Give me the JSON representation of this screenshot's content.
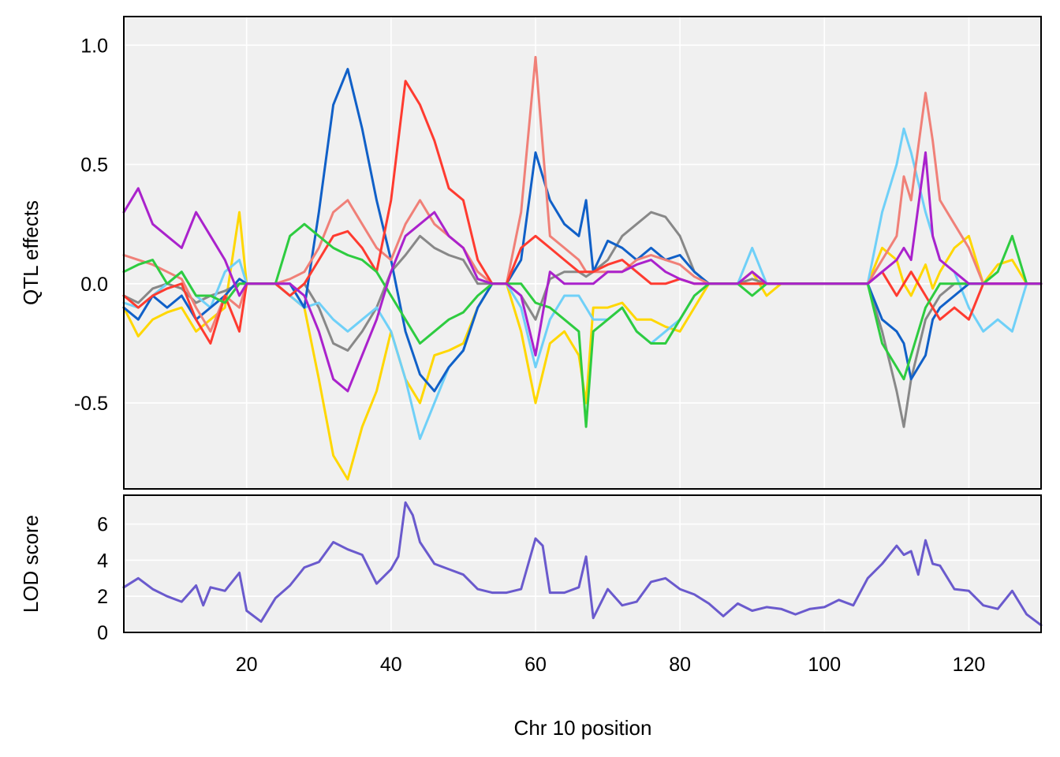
{
  "chart_data": [
    {
      "type": "line",
      "ylabel": "QTL effects",
      "xlim": [
        3,
        130
      ],
      "ylim": [
        -0.86,
        1.12
      ],
      "x_ticks": [
        20,
        40,
        60,
        80,
        100,
        120
      ],
      "y_ticks": [
        -0.5,
        0.0,
        0.5,
        1.0
      ],
      "y_tick_labels": [
        "-0.5",
        "0.0",
        "0.5",
        "1.0"
      ],
      "grid": true,
      "x": [
        3,
        5,
        7,
        9,
        11,
        13,
        15,
        17,
        19,
        20,
        22,
        24,
        26,
        28,
        30,
        32,
        34,
        36,
        38,
        40,
        42,
        44,
        46,
        48,
        50,
        52,
        54,
        56,
        58,
        60,
        62,
        64,
        66,
        67,
        68,
        70,
        72,
        74,
        76,
        78,
        80,
        82,
        84,
        86,
        88,
        90,
        92,
        94,
        96,
        98,
        100,
        102,
        104,
        106,
        108,
        110,
        111,
        112,
        114,
        115,
        116,
        118,
        120,
        122,
        124,
        126,
        128,
        130
      ],
      "series": [
        {
          "color": "#ffd700",
          "values": [
            -0.1,
            -0.22,
            -0.15,
            -0.12,
            -0.1,
            -0.2,
            -0.15,
            -0.1,
            0.3,
            0.0,
            0.0,
            0.0,
            -0.05,
            -0.1,
            -0.4,
            -0.72,
            -0.82,
            -0.6,
            -0.45,
            -0.2,
            -0.4,
            -0.5,
            -0.3,
            -0.28,
            -0.25,
            -0.1,
            0.0,
            0.0,
            -0.2,
            -0.5,
            -0.25,
            -0.2,
            -0.3,
            -0.5,
            -0.1,
            -0.1,
            -0.08,
            -0.15,
            -0.15,
            -0.18,
            -0.2,
            -0.1,
            0.0,
            0.0,
            0.0,
            0.05,
            -0.05,
            0.0,
            0.0,
            0.0,
            0.0,
            0.0,
            0.0,
            0.0,
            0.15,
            0.1,
            0.0,
            -0.05,
            0.08,
            -0.02,
            0.05,
            0.15,
            0.2,
            0.0,
            0.08,
            0.1,
            0.0,
            0.0
          ]
        },
        {
          "color": "#888888",
          "values": [
            -0.05,
            -0.08,
            -0.02,
            0.0,
            -0.02,
            -0.08,
            -0.05,
            -0.03,
            0.0,
            0.0,
            0.0,
            0.0,
            -0.05,
            0.0,
            -0.1,
            -0.25,
            -0.28,
            -0.2,
            -0.1,
            0.05,
            0.12,
            0.2,
            0.15,
            0.12,
            0.1,
            0.0,
            0.0,
            0.0,
            -0.05,
            -0.15,
            0.02,
            0.05,
            0.05,
            0.03,
            0.05,
            0.1,
            0.2,
            0.25,
            0.3,
            0.28,
            0.2,
            0.05,
            0.0,
            0.0,
            0.0,
            0.02,
            0.0,
            0.0,
            0.0,
            0.0,
            0.0,
            0.0,
            0.0,
            0.0,
            -0.2,
            -0.45,
            -0.6,
            -0.4,
            -0.15,
            -0.1,
            -0.05,
            0.0,
            0.0,
            0.0,
            0.0,
            0.0,
            0.0,
            0.0
          ]
        },
        {
          "color": "#6fd0f8",
          "values": [
            -0.08,
            -0.1,
            -0.05,
            0.0,
            0.05,
            -0.05,
            -0.1,
            0.05,
            0.1,
            0.0,
            0.0,
            0.0,
            -0.05,
            -0.1,
            -0.08,
            -0.15,
            -0.2,
            -0.15,
            -0.1,
            -0.2,
            -0.4,
            -0.65,
            -0.5,
            -0.35,
            -0.28,
            -0.1,
            0.0,
            0.0,
            -0.1,
            -0.35,
            -0.15,
            -0.05,
            -0.05,
            -0.1,
            -0.15,
            -0.15,
            -0.1,
            -0.2,
            -0.25,
            -0.2,
            -0.15,
            -0.05,
            0.0,
            0.0,
            0.0,
            0.15,
            0.0,
            0.0,
            0.0,
            0.0,
            0.0,
            0.0,
            0.0,
            0.0,
            0.3,
            0.5,
            0.65,
            0.55,
            0.3,
            0.2,
            0.1,
            0.05,
            -0.1,
            -0.2,
            -0.15,
            -0.2,
            0.0,
            0.0
          ]
        },
        {
          "color": "#1060c8",
          "values": [
            -0.1,
            -0.15,
            -0.05,
            -0.1,
            -0.05,
            -0.15,
            -0.1,
            -0.05,
            0.02,
            0.0,
            0.0,
            0.0,
            0.0,
            -0.1,
            0.3,
            0.75,
            0.9,
            0.65,
            0.35,
            0.1,
            -0.2,
            -0.38,
            -0.45,
            -0.35,
            -0.28,
            -0.1,
            0.0,
            0.0,
            0.1,
            0.55,
            0.35,
            0.25,
            0.2,
            0.35,
            0.05,
            0.18,
            0.15,
            0.1,
            0.15,
            0.1,
            0.12,
            0.05,
            0.0,
            0.0,
            0.0,
            0.0,
            0.0,
            0.0,
            0.0,
            0.0,
            0.0,
            0.0,
            0.0,
            0.0,
            -0.15,
            -0.2,
            -0.25,
            -0.4,
            -0.3,
            -0.15,
            -0.1,
            -0.05,
            0.0,
            0.0,
            0.0,
            0.0,
            0.0,
            0.0
          ]
        },
        {
          "color": "#f08078",
          "values": [
            0.12,
            0.1,
            0.08,
            0.05,
            0.02,
            -0.1,
            -0.2,
            -0.05,
            -0.1,
            0.0,
            0.0,
            0.0,
            0.02,
            0.05,
            0.15,
            0.3,
            0.35,
            0.25,
            0.15,
            0.1,
            0.25,
            0.35,
            0.25,
            0.2,
            0.15,
            0.05,
            0.0,
            0.0,
            0.3,
            0.95,
            0.2,
            0.15,
            0.1,
            0.05,
            0.05,
            0.05,
            0.05,
            0.1,
            0.12,
            0.1,
            0.08,
            0.03,
            0.0,
            0.0,
            0.0,
            0.0,
            0.0,
            0.0,
            0.0,
            0.0,
            0.0,
            0.0,
            0.0,
            0.0,
            0.1,
            0.2,
            0.45,
            0.35,
            0.8,
            0.6,
            0.35,
            0.25,
            0.15,
            0.0,
            0.0,
            0.0,
            0.0,
            0.0
          ]
        },
        {
          "color": "#ff3b30",
          "values": [
            -0.05,
            -0.1,
            -0.05,
            -0.02,
            0.0,
            -0.15,
            -0.25,
            -0.05,
            -0.2,
            0.0,
            0.0,
            0.0,
            -0.05,
            0.0,
            0.1,
            0.2,
            0.22,
            0.15,
            0.05,
            0.35,
            0.85,
            0.75,
            0.6,
            0.4,
            0.35,
            0.1,
            0.0,
            0.0,
            0.15,
            0.2,
            0.15,
            0.1,
            0.05,
            0.05,
            0.05,
            0.08,
            0.1,
            0.05,
            0.0,
            0.0,
            0.02,
            0.0,
            0.0,
            0.0,
            0.0,
            0.0,
            0.0,
            0.0,
            0.0,
            0.0,
            0.0,
            0.0,
            0.0,
            0.0,
            0.05,
            -0.05,
            0.0,
            0.05,
            -0.05,
            -0.1,
            -0.15,
            -0.1,
            -0.15,
            0.0,
            0.0,
            0.0,
            0.0,
            0.0
          ]
        },
        {
          "color": "#2ecc40",
          "values": [
            0.05,
            0.08,
            0.1,
            0.0,
            0.05,
            -0.05,
            -0.05,
            -0.08,
            0.0,
            0.0,
            0.0,
            0.0,
            0.2,
            0.25,
            0.2,
            0.15,
            0.12,
            0.1,
            0.05,
            -0.05,
            -0.15,
            -0.25,
            -0.2,
            -0.15,
            -0.12,
            -0.05,
            0.0,
            0.0,
            0.0,
            -0.08,
            -0.1,
            -0.15,
            -0.2,
            -0.6,
            -0.2,
            -0.15,
            -0.1,
            -0.2,
            -0.25,
            -0.25,
            -0.15,
            -0.05,
            0.0,
            0.0,
            0.0,
            -0.05,
            0.0,
            0.0,
            0.0,
            0.0,
            0.0,
            0.0,
            0.0,
            0.0,
            -0.25,
            -0.35,
            -0.4,
            -0.3,
            -0.1,
            -0.05,
            0.0,
            0.0,
            0.0,
            0.0,
            0.05,
            0.2,
            0.0,
            0.0
          ]
        },
        {
          "color": "#aa22cc",
          "values": [
            0.3,
            0.4,
            0.25,
            0.2,
            0.15,
            0.3,
            0.2,
            0.1,
            -0.05,
            0.0,
            0.0,
            0.0,
            0.0,
            -0.05,
            -0.2,
            -0.4,
            -0.45,
            -0.3,
            -0.15,
            0.05,
            0.2,
            0.25,
            0.3,
            0.2,
            0.15,
            0.02,
            0.0,
            0.0,
            -0.05,
            -0.3,
            0.05,
            0.0,
            0.0,
            0.0,
            0.0,
            0.05,
            0.05,
            0.08,
            0.1,
            0.05,
            0.02,
            0.0,
            0.0,
            0.0,
            0.0,
            0.05,
            0.0,
            0.0,
            0.0,
            0.0,
            0.0,
            0.0,
            0.0,
            0.0,
            0.05,
            0.1,
            0.15,
            0.1,
            0.55,
            0.2,
            0.1,
            0.05,
            0.0,
            0.0,
            0.0,
            0.0,
            0.0,
            0.0
          ]
        }
      ]
    },
    {
      "type": "line",
      "ylabel": "LOD score",
      "xlabel": "Chr 10 position",
      "xlim": [
        3,
        130
      ],
      "ylim": [
        0,
        7.6
      ],
      "x_ticks": [
        20,
        40,
        60,
        80,
        100,
        120
      ],
      "x_tick_labels": [
        "20",
        "40",
        "60",
        "80",
        "100",
        "120"
      ],
      "y_ticks": [
        0,
        2,
        4,
        6
      ],
      "y_tick_labels": [
        "0",
        "2",
        "4",
        "6"
      ],
      "grid": true,
      "series": [
        {
          "color": "#6a5acd",
          "x": [
            3,
            5,
            7,
            9,
            11,
            13,
            14,
            15,
            17,
            19,
            20,
            22,
            24,
            26,
            28,
            30,
            32,
            34,
            36,
            38,
            40,
            41,
            42,
            43,
            44,
            46,
            48,
            50,
            52,
            54,
            56,
            58,
            60,
            61,
            62,
            64,
            66,
            67,
            68,
            70,
            72,
            74,
            76,
            78,
            80,
            82,
            84,
            86,
            88,
            90,
            92,
            94,
            96,
            98,
            100,
            102,
            104,
            106,
            108,
            110,
            111,
            112,
            113,
            114,
            115,
            116,
            118,
            120,
            122,
            124,
            126,
            128,
            130
          ],
          "values": [
            2.5,
            3.0,
            2.4,
            2.0,
            1.7,
            2.6,
            1.5,
            2.5,
            2.3,
            3.3,
            1.2,
            0.6,
            1.9,
            2.6,
            3.6,
            3.9,
            5.0,
            4.6,
            4.3,
            2.7,
            3.5,
            4.2,
            7.2,
            6.5,
            5.0,
            3.8,
            3.5,
            3.2,
            2.4,
            2.2,
            2.2,
            2.4,
            5.2,
            4.8,
            2.2,
            2.2,
            2.5,
            4.2,
            0.8,
            2.4,
            1.5,
            1.7,
            2.8,
            3.0,
            2.4,
            2.1,
            1.6,
            0.9,
            1.6,
            1.2,
            1.4,
            1.3,
            1.0,
            1.3,
            1.4,
            1.8,
            1.5,
            3.0,
            3.8,
            4.8,
            4.3,
            4.5,
            3.2,
            5.1,
            3.8,
            3.7,
            2.4,
            2.3,
            1.5,
            1.3,
            2.3,
            1.0,
            0.4
          ]
        }
      ]
    }
  ]
}
